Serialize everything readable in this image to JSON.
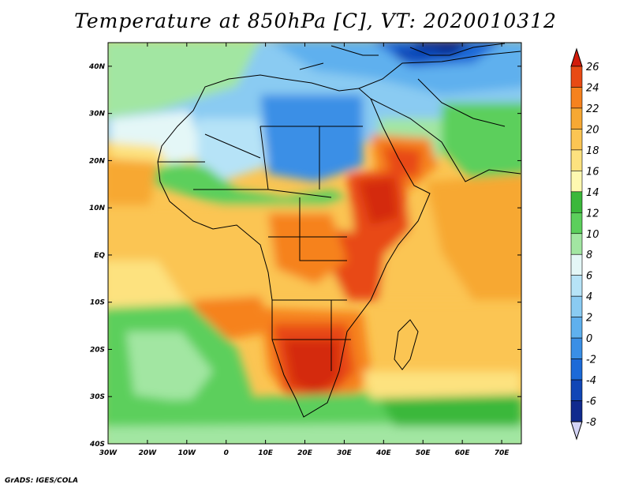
{
  "title": "Temperature at 850hPa [C], VT: 2020010312",
  "credit": "GrADS: IGES/COLA",
  "map": {
    "lon_range": [
      -30,
      75
    ],
    "lat_range": [
      -40,
      45
    ],
    "x_ticks": [
      {
        "value": -30,
        "label": "30W"
      },
      {
        "value": -20,
        "label": "20W"
      },
      {
        "value": -10,
        "label": "10W"
      },
      {
        "value": 0,
        "label": "0"
      },
      {
        "value": 10,
        "label": "10E"
      },
      {
        "value": 20,
        "label": "20E"
      },
      {
        "value": 30,
        "label": "30E"
      },
      {
        "value": 40,
        "label": "40E"
      },
      {
        "value": 50,
        "label": "50E"
      },
      {
        "value": 60,
        "label": "60E"
      },
      {
        "value": 70,
        "label": "70E"
      }
    ],
    "y_ticks": [
      {
        "value": 40,
        "label": "40N"
      },
      {
        "value": 30,
        "label": "30N"
      },
      {
        "value": 20,
        "label": "20N"
      },
      {
        "value": 10,
        "label": "10N"
      },
      {
        "value": 0,
        "label": "EQ"
      },
      {
        "value": -10,
        "label": "10S"
      },
      {
        "value": -20,
        "label": "20S"
      },
      {
        "value": -30,
        "label": "30S"
      },
      {
        "value": -40,
        "label": "40S"
      }
    ]
  },
  "colorbar": {
    "levels": [
      {
        "label": "26",
        "color": "#d42b0e"
      },
      {
        "label": "24",
        "color": "#e84a14"
      },
      {
        "label": "22",
        "color": "#f6821e"
      },
      {
        "label": "20",
        "color": "#f7a833"
      },
      {
        "label": "18",
        "color": "#fbc553"
      },
      {
        "label": "16",
        "color": "#fde27f"
      },
      {
        "label": "14",
        "color": "#fef8b0"
      },
      {
        "label": "12",
        "color": "#3bb83b"
      },
      {
        "label": "10",
        "color": "#5ccf5c"
      },
      {
        "label": "8",
        "color": "#a2e6a2"
      },
      {
        "label": "6",
        "color": "#e4f7f7"
      },
      {
        "label": "4",
        "color": "#b6e3f7"
      },
      {
        "label": "2",
        "color": "#8acbf2"
      },
      {
        "label": "0",
        "color": "#5fb0ee"
      },
      {
        "label": "-2",
        "color": "#3a8fe6"
      },
      {
        "label": "-4",
        "color": "#1c6ad8"
      },
      {
        "label": "-6",
        "color": "#1046b6"
      },
      {
        "label": "-8",
        "color": "#102a8e"
      }
    ],
    "top_color": "#d21b0b",
    "bottom_color": "#d3d3f5"
  }
}
